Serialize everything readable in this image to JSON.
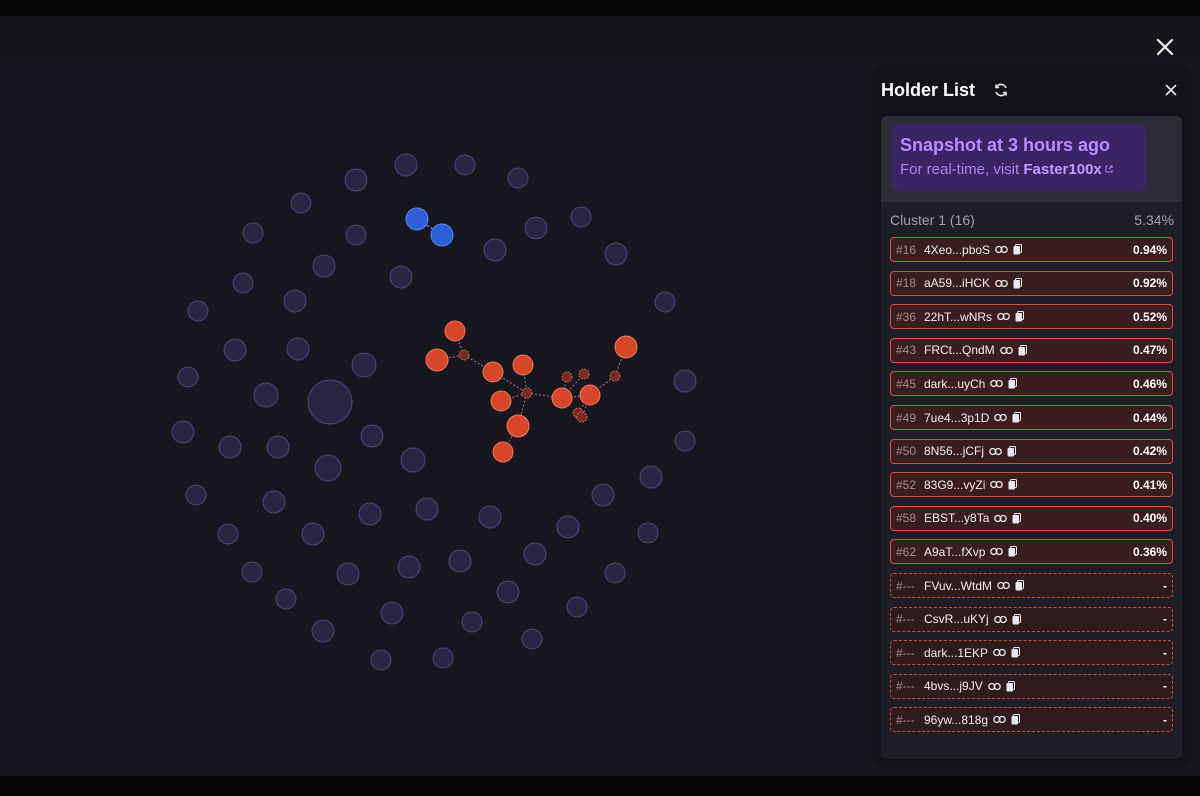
{
  "panel": {
    "title": "Holder List",
    "snapshot_title": "Snapshot at 3 hours ago",
    "snapshot_prefix": "For real-time, visit ",
    "snapshot_link": "Faster100x"
  },
  "cluster": {
    "label": "Cluster 1 (16)",
    "percent": "5.34%"
  },
  "holders": [
    {
      "rank": "#16",
      "address": "4Xeo...pboS",
      "percent": "0.94%"
    },
    {
      "rank": "#18",
      "address": "aA59...iHCK",
      "percent": "0.92%"
    },
    {
      "rank": "#36",
      "address": "22hT...wNRs",
      "percent": "0.52%"
    },
    {
      "rank": "#43",
      "address": "FRCt...QndM",
      "percent": "0.47%"
    },
    {
      "rank": "#45",
      "address": "dark...uyCh",
      "percent": "0.46%"
    },
    {
      "rank": "#49",
      "address": "7ue4...3p1D",
      "percent": "0.44%"
    },
    {
      "rank": "#50",
      "address": "8N56...jCFj",
      "percent": "0.42%"
    },
    {
      "rank": "#52",
      "address": "83G9...vyZi",
      "percent": "0.41%"
    },
    {
      "rank": "#58",
      "address": "EBST...y8Ta",
      "percent": "0.40%"
    },
    {
      "rank": "#62",
      "address": "A9aT...fXvp",
      "percent": "0.36%"
    },
    {
      "rank": "#---",
      "address": "FVuv...WtdM",
      "percent": "-"
    },
    {
      "rank": "#---",
      "address": "CsvR...uKYj",
      "percent": "-"
    },
    {
      "rank": "#---",
      "address": "dark...1EKP",
      "percent": "-"
    },
    {
      "rank": "#---",
      "address": "4bvs...j9JV",
      "percent": "-"
    },
    {
      "rank": "#---",
      "address": "96yw...818g",
      "percent": "-"
    }
  ],
  "colors": {
    "neutral_node": "#3a3260",
    "cluster_red": "#d9472b",
    "cluster_blue": "#2f5fd6",
    "accent_purple": "#b98cff"
  },
  "icons": {
    "close": "close-icon",
    "refresh": "refresh-icon",
    "link": "link-icon",
    "copy": "copy-icon",
    "external": "external-link-icon"
  }
}
